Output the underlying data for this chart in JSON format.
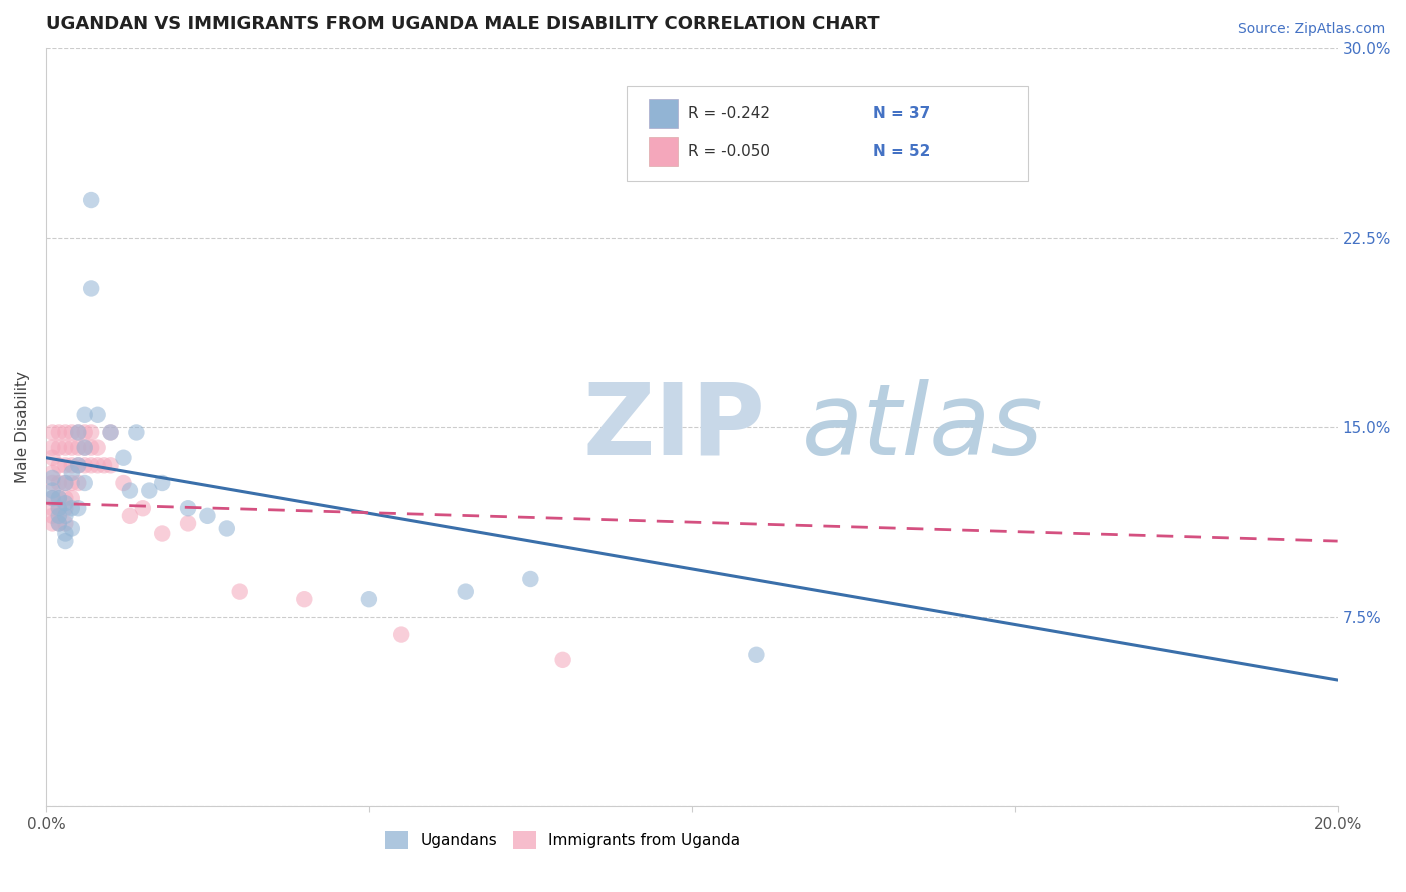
{
  "title": "UGANDAN VS IMMIGRANTS FROM UGANDA MALE DISABILITY CORRELATION CHART",
  "source": "Source: ZipAtlas.com",
  "ylabel": "Male Disability",
  "x_min": 0.0,
  "x_max": 0.2,
  "y_min": 0.0,
  "y_max": 0.3,
  "x_ticks": [
    0.0,
    0.05,
    0.1,
    0.15,
    0.2
  ],
  "y_ticks": [
    0.0,
    0.075,
    0.15,
    0.225,
    0.3
  ],
  "y_tick_labels": [
    "",
    "7.5%",
    "15.0%",
    "22.5%",
    "30.0%"
  ],
  "legend_r1": "-0.242",
  "legend_n1": "37",
  "legend_r2": "-0.050",
  "legend_n2": "52",
  "blue_color": "#92b4d4",
  "pink_color": "#f4a7bb",
  "blue_line_color": "#3a6faa",
  "pink_line_color": "#d45080",
  "watermark_zip": "ZIP",
  "watermark_atlas": "atlas",
  "watermark_zip_color": "#c8d8e8",
  "watermark_atlas_color": "#b8cfe0",
  "legend1_label": "Ugandans",
  "legend2_label": "Immigrants from Uganda",
  "blue_line_start_y": 0.138,
  "blue_line_end_y": 0.05,
  "pink_line_start_y": 0.12,
  "pink_line_end_y": 0.105,
  "ugandan_x": [
    0.001,
    0.001,
    0.001,
    0.002,
    0.002,
    0.002,
    0.002,
    0.003,
    0.003,
    0.003,
    0.003,
    0.003,
    0.004,
    0.004,
    0.004,
    0.005,
    0.005,
    0.005,
    0.006,
    0.006,
    0.006,
    0.007,
    0.007,
    0.008,
    0.01,
    0.012,
    0.013,
    0.014,
    0.016,
    0.018,
    0.022,
    0.025,
    0.028,
    0.05,
    0.065,
    0.075,
    0.11
  ],
  "ugandan_y": [
    0.13,
    0.125,
    0.122,
    0.118,
    0.122,
    0.115,
    0.112,
    0.128,
    0.12,
    0.115,
    0.108,
    0.105,
    0.132,
    0.118,
    0.11,
    0.148,
    0.135,
    0.118,
    0.155,
    0.142,
    0.128,
    0.205,
    0.24,
    0.155,
    0.148,
    0.138,
    0.125,
    0.148,
    0.125,
    0.128,
    0.118,
    0.115,
    0.11,
    0.082,
    0.085,
    0.09,
    0.06
  ],
  "immigrant_x": [
    0.001,
    0.001,
    0.001,
    0.001,
    0.001,
    0.001,
    0.001,
    0.001,
    0.001,
    0.002,
    0.002,
    0.002,
    0.002,
    0.002,
    0.002,
    0.002,
    0.003,
    0.003,
    0.003,
    0.003,
    0.003,
    0.003,
    0.003,
    0.004,
    0.004,
    0.004,
    0.004,
    0.004,
    0.005,
    0.005,
    0.005,
    0.005,
    0.006,
    0.006,
    0.006,
    0.007,
    0.007,
    0.007,
    0.008,
    0.008,
    0.009,
    0.01,
    0.01,
    0.012,
    0.013,
    0.015,
    0.018,
    0.022,
    0.03,
    0.04,
    0.055,
    0.08
  ],
  "immigrant_y": [
    0.148,
    0.142,
    0.138,
    0.132,
    0.128,
    0.122,
    0.118,
    0.115,
    0.112,
    0.148,
    0.142,
    0.135,
    0.128,
    0.122,
    0.118,
    0.112,
    0.148,
    0.142,
    0.135,
    0.128,
    0.122,
    0.118,
    0.112,
    0.148,
    0.142,
    0.135,
    0.128,
    0.122,
    0.148,
    0.142,
    0.135,
    0.128,
    0.148,
    0.142,
    0.135,
    0.148,
    0.142,
    0.135,
    0.142,
    0.135,
    0.135,
    0.148,
    0.135,
    0.128,
    0.115,
    0.118,
    0.108,
    0.112,
    0.085,
    0.082,
    0.068,
    0.058
  ],
  "title_fontsize": 13,
  "axis_label_fontsize": 11,
  "tick_fontsize": 11,
  "source_fontsize": 10
}
